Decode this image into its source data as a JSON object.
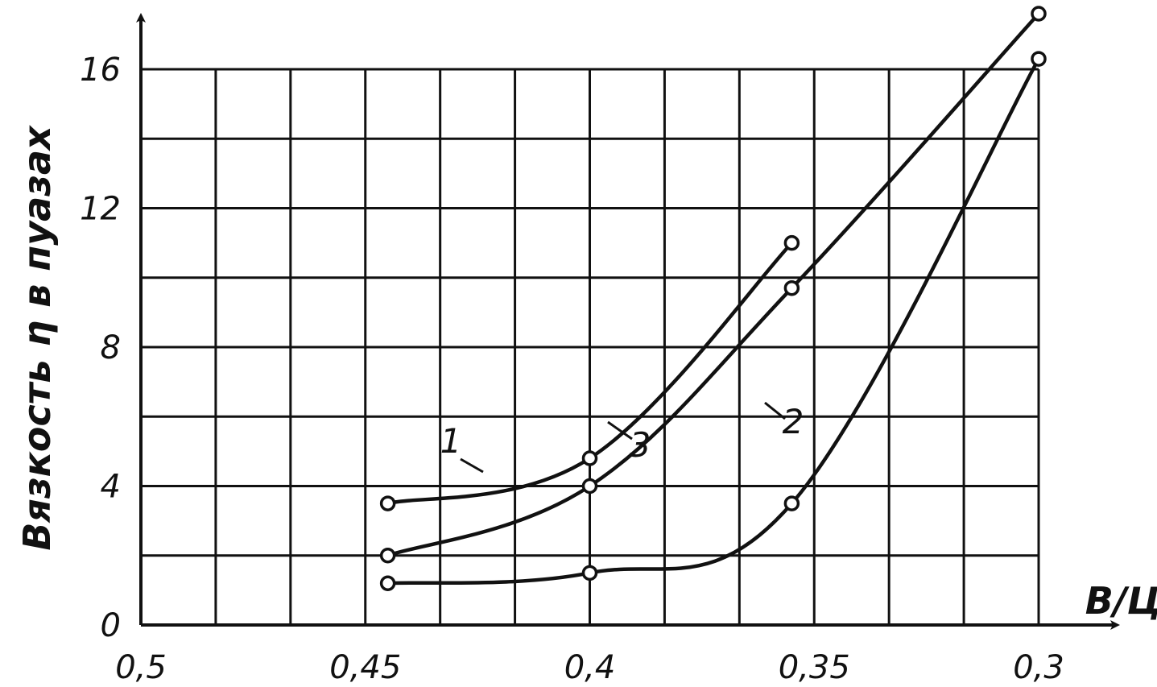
{
  "chart_data": {
    "type": "line",
    "xlabel": "В/Ц",
    "ylabel": "Вязкость η в пуазах",
    "xlim": [
      0.5,
      0.3
    ],
    "ylim": [
      0,
      16
    ],
    "x_reversed": true,
    "grid": true,
    "x_ticks": [
      0.5,
      0.45,
      0.4,
      0.35,
      0.3
    ],
    "x_tick_labels": [
      "0,5",
      "0,45",
      "0,4",
      "0,35",
      "0,3"
    ],
    "y_ticks": [
      0,
      4,
      8,
      12,
      16
    ],
    "y_tick_labels": [
      "0",
      "4",
      "8",
      "12",
      "16"
    ],
    "series": [
      {
        "name": "1",
        "x": [
          0.445,
          0.4,
          0.355
        ],
        "y": [
          3.5,
          4.8,
          11.0
        ]
      },
      {
        "name": "2",
        "x": [
          0.445,
          0.4,
          0.355,
          0.3
        ],
        "y": [
          1.2,
          1.5,
          3.5,
          16.3
        ]
      },
      {
        "name": "3",
        "x": [
          0.445,
          0.4,
          0.355,
          0.3
        ],
        "y": [
          2.0,
          4.0,
          9.7,
          17.6
        ]
      }
    ]
  }
}
